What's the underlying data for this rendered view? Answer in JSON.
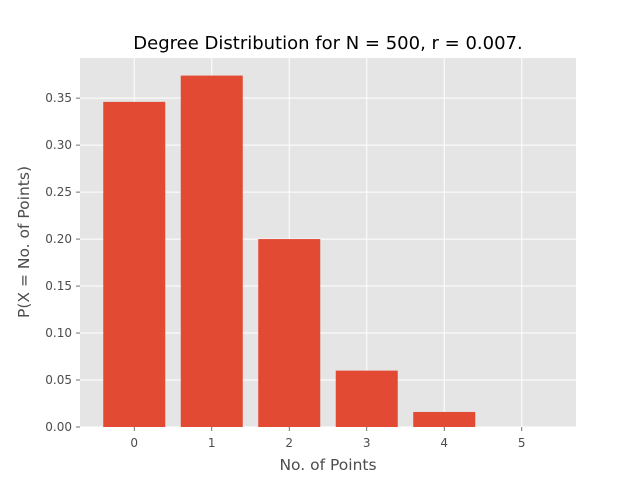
{
  "chart_data": {
    "type": "bar",
    "title": "Degree Distribution for N = 500, r = 0.007.",
    "xlabel": "No. of Points",
    "ylabel": "P(X = No. of Points)",
    "categories": [
      "0",
      "1",
      "2",
      "3",
      "4",
      "5"
    ],
    "values": [
      0.346,
      0.374,
      0.2,
      0.06,
      0.016,
      0.0
    ],
    "xlim": [
      -0.7,
      5.7
    ],
    "ylim": [
      0,
      0.3927
    ],
    "yticks": [
      "0.00",
      "0.05",
      "0.10",
      "0.15",
      "0.20",
      "0.25",
      "0.30",
      "0.35"
    ],
    "grid": true,
    "background_color": "#e5e5e5",
    "bar_color": "#e24a33",
    "grid_color": "#ffffff"
  }
}
